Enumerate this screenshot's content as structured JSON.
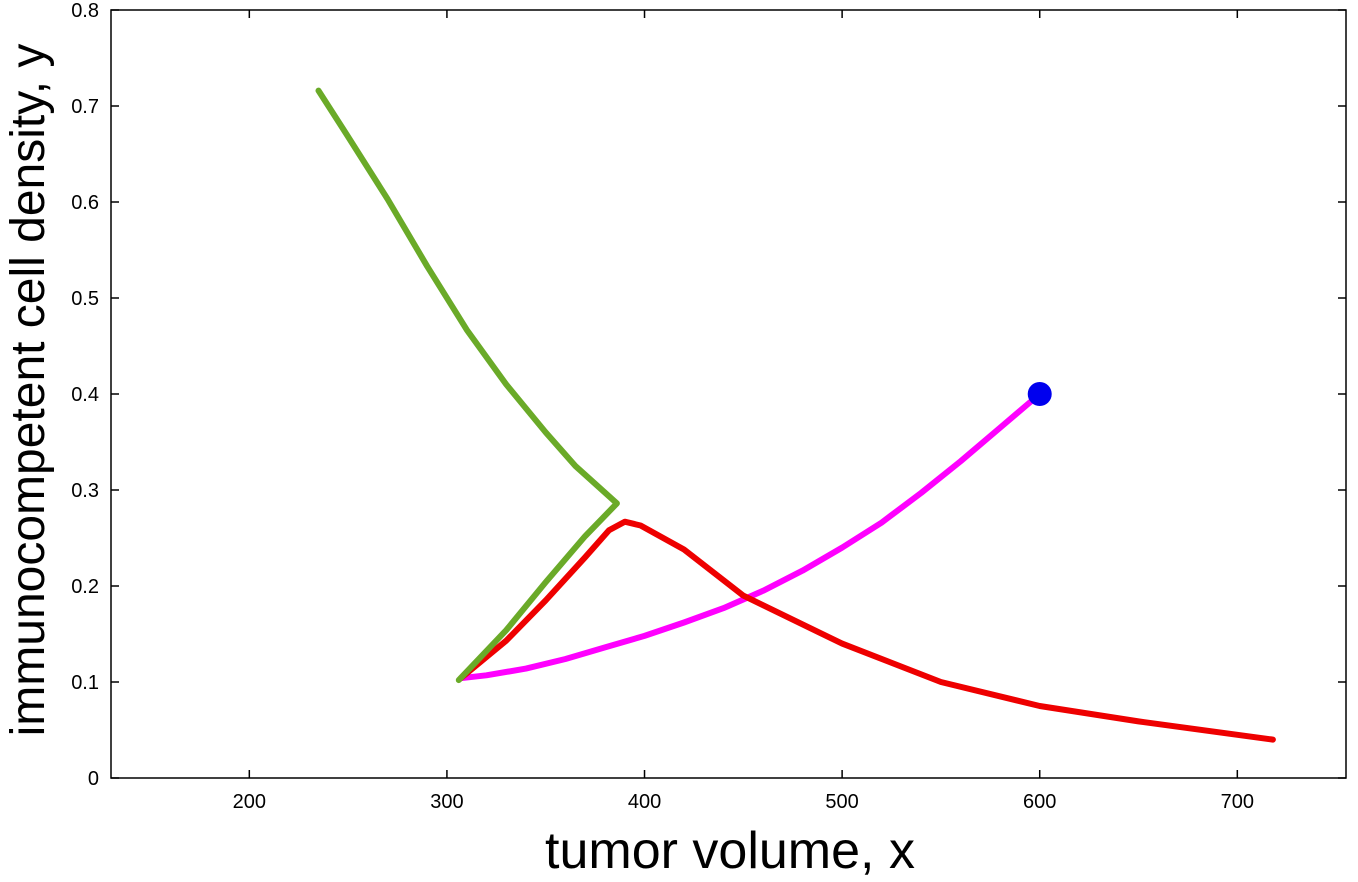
{
  "chart_data": {
    "type": "line",
    "title": "",
    "xlabel": "tumor volume, x",
    "ylabel": "immunocompetent cell density, y",
    "xlim": [
      130,
      755
    ],
    "ylim": [
      0,
      0.8
    ],
    "xticks": [
      200,
      300,
      400,
      500,
      600,
      700
    ],
    "yticks": [
      0,
      0.1,
      0.2,
      0.3,
      0.4,
      0.5,
      0.6,
      0.7,
      0.8
    ],
    "xtick_labels": [
      "200",
      "300",
      "400",
      "500",
      "600",
      "700"
    ],
    "ytick_labels": [
      "0",
      "0.1",
      "0.2",
      "0.3",
      "0.4",
      "0.5",
      "0.6",
      "0.7",
      "0.8"
    ],
    "grid": false,
    "legend": "none",
    "series": [
      {
        "color": "#ff00ff",
        "points": [
          [
            600,
            0.4
          ],
          [
            580,
            0.365
          ],
          [
            560,
            0.33
          ],
          [
            540,
            0.297
          ],
          [
            520,
            0.266
          ],
          [
            500,
            0.24
          ],
          [
            480,
            0.216
          ],
          [
            460,
            0.195
          ],
          [
            440,
            0.177
          ],
          [
            420,
            0.162
          ],
          [
            400,
            0.148
          ],
          [
            380,
            0.136
          ],
          [
            360,
            0.124
          ],
          [
            340,
            0.114
          ],
          [
            320,
            0.107
          ],
          [
            307,
            0.104
          ]
        ]
      },
      {
        "color": "#ee0000",
        "points": [
          [
            307,
            0.104
          ],
          [
            330,
            0.143
          ],
          [
            350,
            0.185
          ],
          [
            370,
            0.23
          ],
          [
            382,
            0.258
          ],
          [
            390,
            0.267
          ],
          [
            398,
            0.263
          ],
          [
            420,
            0.238
          ],
          [
            450,
            0.19
          ],
          [
            500,
            0.14
          ],
          [
            550,
            0.1
          ],
          [
            600,
            0.075
          ],
          [
            650,
            0.059
          ],
          [
            718,
            0.04
          ]
        ]
      },
      {
        "color": "#6aaa28",
        "points": [
          [
            235,
            0.716
          ],
          [
            250,
            0.668
          ],
          [
            270,
            0.603
          ],
          [
            290,
            0.533
          ],
          [
            310,
            0.467
          ],
          [
            330,
            0.41
          ],
          [
            350,
            0.36
          ],
          [
            365,
            0.325
          ],
          [
            386,
            0.286
          ],
          [
            370,
            0.252
          ],
          [
            350,
            0.204
          ],
          [
            330,
            0.154
          ],
          [
            306,
            0.102
          ]
        ]
      }
    ],
    "markers": [
      {
        "x": 600,
        "y": 0.4,
        "color": "#0000ee"
      }
    ]
  }
}
